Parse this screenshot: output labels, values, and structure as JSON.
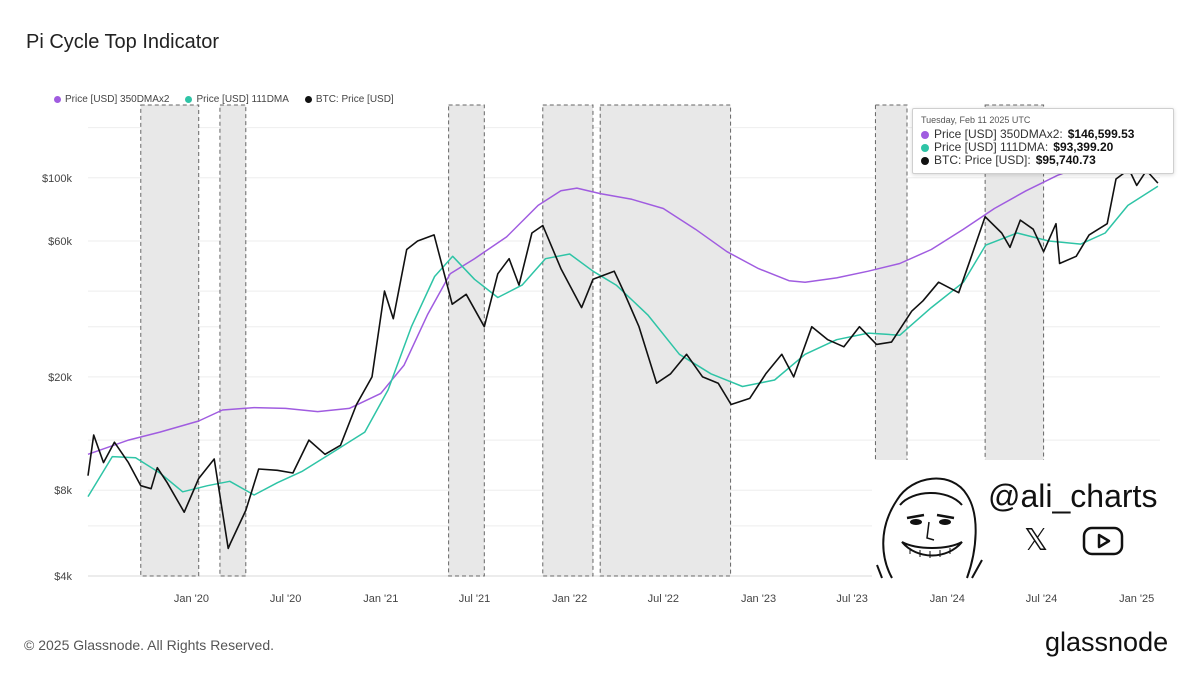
{
  "title": "Pi Cycle Top Indicator",
  "legend": [
    {
      "label": "Price [USD] 350DMAx2",
      "color": "#a05ce0"
    },
    {
      "label": "Price [USD] 111DMA",
      "color": "#2ec4a6"
    },
    {
      "label": "BTC: Price [USD]",
      "color": "#111111"
    }
  ],
  "tooltip": {
    "date": "Tuesday, Feb 11 2025 UTC",
    "rows": [
      {
        "label": "Price [USD] 350DMAx2:",
        "value": "$146,599.53",
        "color": "#a05ce0"
      },
      {
        "label": "Price [USD] 111DMA:",
        "value": "$93,399.20",
        "color": "#2ec4a6"
      },
      {
        "label": "BTC: Price [USD]:",
        "value": "$95,740.73",
        "color": "#111111"
      }
    ]
  },
  "branding": {
    "handle": "@ali_charts",
    "x_icon": "𝕏",
    "youtube_icon": "youtube-play-icon"
  },
  "footer": {
    "copyright": "© 2025 Glassnode. All Rights Reserved.",
    "logo": "glassnode"
  },
  "chart_data": {
    "type": "line",
    "scale": "log",
    "ylim": [
      4000,
      200000
    ],
    "yticks": [
      {
        "label": "$4k",
        "value": 4000
      },
      {
        "label": "$8k",
        "value": 8000
      },
      {
        "label": "$20k",
        "value": 20000
      },
      {
        "label": "$60k",
        "value": 60000
      },
      {
        "label": "$100k",
        "value": 100000
      }
    ],
    "xticks": [
      {
        "label": "Jan '20",
        "x": "2020-01-01"
      },
      {
        "label": "Jul '20",
        "x": "2020-07-01"
      },
      {
        "label": "Jan '21",
        "x": "2021-01-01"
      },
      {
        "label": "Jul '21",
        "x": "2021-07-01"
      },
      {
        "label": "Jan '22",
        "x": "2022-01-01"
      },
      {
        "label": "Jul '22",
        "x": "2022-07-01"
      },
      {
        "label": "Jan '23",
        "x": "2023-01-01"
      },
      {
        "label": "Jul '23",
        "x": "2023-07-01"
      },
      {
        "label": "Jan '24",
        "x": "2024-01-01"
      },
      {
        "label": "Jul '24",
        "x": "2024-07-01"
      },
      {
        "label": "Jan '25",
        "x": "2025-01-01"
      }
    ],
    "grid": true,
    "shaded_regions": [
      {
        "start": "2019-09-25",
        "end": "2020-01-15"
      },
      {
        "start": "2020-02-25",
        "end": "2020-04-15"
      },
      {
        "start": "2021-05-12",
        "end": "2021-07-20"
      },
      {
        "start": "2021-11-10",
        "end": "2022-02-15"
      },
      {
        "start": "2022-03-01",
        "end": "2022-11-08"
      },
      {
        "start": "2023-08-15",
        "end": "2023-10-15"
      },
      {
        "start": "2024-03-14",
        "end": "2024-07-05"
      }
    ],
    "series": [
      {
        "name": "Price [USD] 350DMAx2",
        "color": "#a05ce0",
        "points": [
          [
            "2019-06-15",
            10700
          ],
          [
            "2019-09-01",
            12000
          ],
          [
            "2019-11-01",
            12800
          ],
          [
            "2020-01-15",
            14000
          ],
          [
            "2020-03-01",
            15300
          ],
          [
            "2020-05-01",
            15600
          ],
          [
            "2020-07-01",
            15500
          ],
          [
            "2020-09-01",
            15100
          ],
          [
            "2020-11-01",
            15500
          ],
          [
            "2021-01-01",
            17500
          ],
          [
            "2021-02-15",
            22000
          ],
          [
            "2021-04-01",
            33000
          ],
          [
            "2021-05-15",
            46000
          ],
          [
            "2021-07-01",
            52000
          ],
          [
            "2021-09-01",
            62000
          ],
          [
            "2021-11-01",
            80000
          ],
          [
            "2021-12-15",
            90000
          ],
          [
            "2022-01-15",
            92000
          ],
          [
            "2022-03-01",
            88000
          ],
          [
            "2022-05-01",
            84000
          ],
          [
            "2022-07-01",
            78000
          ],
          [
            "2022-09-01",
            66000
          ],
          [
            "2022-11-01",
            55000
          ],
          [
            "2023-01-01",
            48000
          ],
          [
            "2023-03-01",
            43500
          ],
          [
            "2023-04-01",
            43000
          ],
          [
            "2023-06-01",
            44500
          ],
          [
            "2023-08-01",
            47000
          ],
          [
            "2023-10-01",
            50000
          ],
          [
            "2023-12-01",
            56000
          ],
          [
            "2024-02-01",
            66000
          ],
          [
            "2024-04-01",
            78000
          ],
          [
            "2024-06-01",
            90000
          ],
          [
            "2024-08-01",
            102000
          ],
          [
            "2024-10-01",
            112000
          ],
          [
            "2024-12-01",
            126000
          ],
          [
            "2025-02-11",
            146600
          ]
        ]
      },
      {
        "name": "Price [USD] 111DMA",
        "color": "#2ec4a6",
        "points": [
          [
            "2019-06-15",
            7600
          ],
          [
            "2019-08-01",
            10500
          ],
          [
            "2019-09-15",
            10400
          ],
          [
            "2019-11-01",
            9200
          ],
          [
            "2019-12-15",
            7900
          ],
          [
            "2020-02-01",
            8300
          ],
          [
            "2020-03-15",
            8600
          ],
          [
            "2020-05-01",
            7700
          ],
          [
            "2020-06-15",
            8500
          ],
          [
            "2020-08-01",
            9300
          ],
          [
            "2020-10-01",
            10900
          ],
          [
            "2020-12-01",
            12800
          ],
          [
            "2021-01-15",
            18000
          ],
          [
            "2021-03-01",
            30000
          ],
          [
            "2021-04-15",
            45000
          ],
          [
            "2021-05-20",
            53000
          ],
          [
            "2021-07-01",
            44000
          ],
          [
            "2021-08-15",
            38000
          ],
          [
            "2021-10-01",
            42000
          ],
          [
            "2021-11-15",
            52000
          ],
          [
            "2022-01-01",
            54000
          ],
          [
            "2022-02-15",
            47000
          ],
          [
            "2022-04-01",
            42000
          ],
          [
            "2022-06-01",
            33000
          ],
          [
            "2022-08-01",
            24000
          ],
          [
            "2022-10-01",
            20500
          ],
          [
            "2022-12-01",
            18500
          ],
          [
            "2023-02-01",
            19500
          ],
          [
            "2023-04-01",
            24000
          ],
          [
            "2023-06-01",
            27000
          ],
          [
            "2023-08-01",
            28500
          ],
          [
            "2023-10-01",
            28000
          ],
          [
            "2023-12-01",
            35000
          ],
          [
            "2024-02-01",
            43000
          ],
          [
            "2024-03-15",
            58000
          ],
          [
            "2024-05-15",
            64000
          ],
          [
            "2024-07-15",
            60000
          ],
          [
            "2024-09-15",
            58500
          ],
          [
            "2024-11-01",
            64000
          ],
          [
            "2024-12-15",
            80000
          ],
          [
            "2025-02-11",
            93400
          ]
        ]
      },
      {
        "name": "BTC: Price [USD]",
        "color": "#111111",
        "points": [
          [
            "2019-06-15",
            9000
          ],
          [
            "2019-06-26",
            12500
          ],
          [
            "2019-07-15",
            10000
          ],
          [
            "2019-08-05",
            11800
          ],
          [
            "2019-09-01",
            10000
          ],
          [
            "2019-09-25",
            8300
          ],
          [
            "2019-10-15",
            8100
          ],
          [
            "2019-10-27",
            9600
          ],
          [
            "2019-11-15",
            8500
          ],
          [
            "2019-12-18",
            6700
          ],
          [
            "2020-01-15",
            8800
          ],
          [
            "2020-02-14",
            10300
          ],
          [
            "2020-03-12",
            5000
          ],
          [
            "2020-03-16",
            5200
          ],
          [
            "2020-04-15",
            6800
          ],
          [
            "2020-05-10",
            9500
          ],
          [
            "2020-06-15",
            9400
          ],
          [
            "2020-07-15",
            9200
          ],
          [
            "2020-08-15",
            12000
          ],
          [
            "2020-09-15",
            10700
          ],
          [
            "2020-10-15",
            11500
          ],
          [
            "2020-11-15",
            16000
          ],
          [
            "2020-12-15",
            20000
          ],
          [
            "2021-01-08",
            40000
          ],
          [
            "2021-01-25",
            32000
          ],
          [
            "2021-02-20",
            56000
          ],
          [
            "2021-03-13",
            60000
          ],
          [
            "2021-04-14",
            63000
          ],
          [
            "2021-05-19",
            36000
          ],
          [
            "2021-06-15",
            39000
          ],
          [
            "2021-07-20",
            30000
          ],
          [
            "2021-08-15",
            46000
          ],
          [
            "2021-09-06",
            52000
          ],
          [
            "2021-09-25",
            42000
          ],
          [
            "2021-10-20",
            64000
          ],
          [
            "2021-11-10",
            68000
          ],
          [
            "2021-12-15",
            48000
          ],
          [
            "2022-01-24",
            35000
          ],
          [
            "2022-02-15",
            44000
          ],
          [
            "2022-03-28",
            47000
          ],
          [
            "2022-04-15",
            40000
          ],
          [
            "2022-05-15",
            30000
          ],
          [
            "2022-06-18",
            19000
          ],
          [
            "2022-07-15",
            20500
          ],
          [
            "2022-08-15",
            24000
          ],
          [
            "2022-09-15",
            20000
          ],
          [
            "2022-10-15",
            19000
          ],
          [
            "2022-11-09",
            16000
          ],
          [
            "2022-12-15",
            16800
          ],
          [
            "2023-01-15",
            20500
          ],
          [
            "2023-02-15",
            24000
          ],
          [
            "2023-03-10",
            20000
          ],
          [
            "2023-04-14",
            30000
          ],
          [
            "2023-05-15",
            27000
          ],
          [
            "2023-06-15",
            25500
          ],
          [
            "2023-07-15",
            30000
          ],
          [
            "2023-08-17",
            26000
          ],
          [
            "2023-09-15",
            26500
          ],
          [
            "2023-10-24",
            34000
          ],
          [
            "2023-11-15",
            37000
          ],
          [
            "2023-12-15",
            43000
          ],
          [
            "2024-01-23",
            39500
          ],
          [
            "2024-02-15",
            52000
          ],
          [
            "2024-03-14",
            73000
          ],
          [
            "2024-04-15",
            64000
          ],
          [
            "2024-05-01",
            57000
          ],
          [
            "2024-05-21",
            71000
          ],
          [
            "2024-06-15",
            66000
          ],
          [
            "2024-07-05",
            55000
          ],
          [
            "2024-07-29",
            69000
          ],
          [
            "2024-08-05",
            50000
          ],
          [
            "2024-09-06",
            53000
          ],
          [
            "2024-10-01",
            63000
          ],
          [
            "2024-11-05",
            69000
          ],
          [
            "2024-11-22",
            99000
          ],
          [
            "2024-12-17",
            107000
          ],
          [
            "2025-01-01",
            94000
          ],
          [
            "2025-01-20",
            106000
          ],
          [
            "2025-02-11",
            95740
          ]
        ]
      }
    ]
  }
}
